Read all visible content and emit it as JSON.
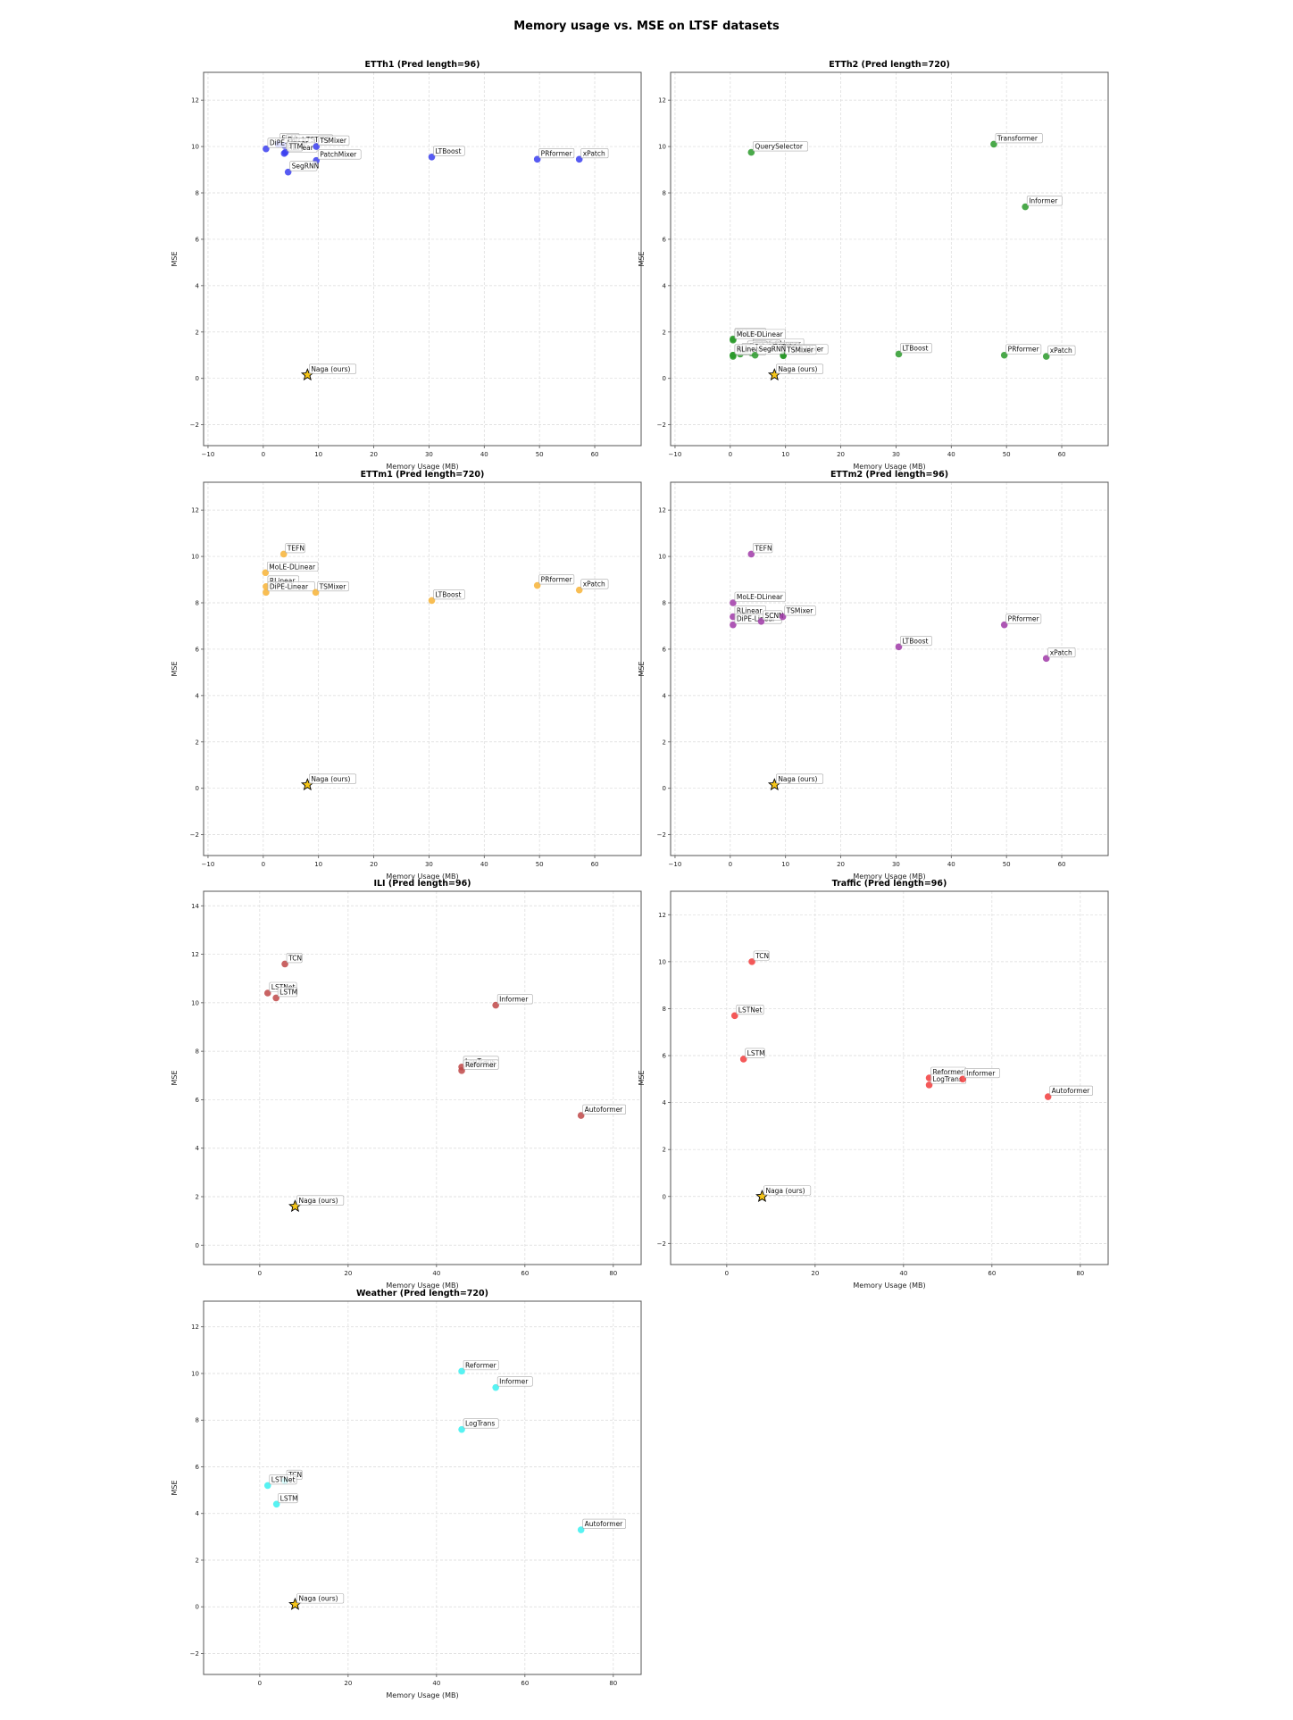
{
  "title": "Memory usage vs. MSE on LTSF datasets",
  "colors": {
    "ETTh1": "#3a3ef0",
    "ETTh2": "#2a9a2a",
    "ETTm1": "#f7b336",
    "ETTm2": "#a03aa8",
    "ILI": "#c04848",
    "Traffic": "#f23c3c",
    "Weather": "#3af0f0",
    "ours": "#f5c518"
  },
  "chart_data": [
    {
      "type": "scatter",
      "title": "ETTh1 (Pred length=96)",
      "xlabel": "Memory Usage (MB)",
      "ylabel": "MSE",
      "xlim": [
        -10.8,
        68.4
      ],
      "ylim": [
        -2.9,
        13.2
      ],
      "xticks": [
        -10,
        0,
        10,
        20,
        30,
        40,
        50,
        60
      ],
      "yticks": [
        -2,
        0,
        2,
        4,
        6,
        8,
        10,
        12
      ],
      "grid": true,
      "color_key": "ETTh1",
      "points": [
        {
          "label": "FiLM",
          "x": 2.7,
          "y": 10.1
        },
        {
          "label": "PatchTST/64",
          "x": 3.8,
          "y": 10.05
        },
        {
          "label": "DiPE-Linear",
          "x": 0.5,
          "y": 9.9
        },
        {
          "label": "RLinear",
          "x": 3.8,
          "y": 9.7
        },
        {
          "label": "TTM",
          "x": 4.0,
          "y": 9.75
        },
        {
          "label": "TSMixer",
          "x": 9.6,
          "y": 10.0
        },
        {
          "label": "PatchMixer",
          "x": 9.6,
          "y": 9.4
        },
        {
          "label": "SegRNN",
          "x": 4.5,
          "y": 8.9
        },
        {
          "label": "LTBoost",
          "x": 30.5,
          "y": 9.55
        },
        {
          "label": "PRformer",
          "x": 49.6,
          "y": 9.45
        },
        {
          "label": "xPatch",
          "x": 57.2,
          "y": 9.45
        },
        {
          "label": "Naga (ours)",
          "x": 8.0,
          "y": 0.15,
          "ours": true
        }
      ]
    },
    {
      "type": "scatter",
      "title": "ETTh2 (Pred length=720)",
      "xlabel": "Memory Usage (MB)",
      "ylabel": "MSE",
      "xlim": [
        -10.8,
        68.4
      ],
      "ylim": [
        -2.9,
        13.2
      ],
      "xticks": [
        -10,
        0,
        10,
        20,
        30,
        40,
        50,
        60
      ],
      "yticks": [
        -2,
        0,
        2,
        4,
        6,
        8,
        10,
        12
      ],
      "grid": true,
      "color_key": "ETTh2",
      "points": [
        {
          "label": "QuerySelector",
          "x": 3.8,
          "y": 9.75
        },
        {
          "label": "Transformer",
          "x": 47.7,
          "y": 10.1
        },
        {
          "label": "Informer",
          "x": 53.4,
          "y": 7.4
        },
        {
          "label": "DLinear",
          "x": 0.5,
          "y": 1.7
        },
        {
          "label": "MoLE-DLinear",
          "x": 0.5,
          "y": 1.65
        },
        {
          "label": "MoLE-RLinear",
          "x": 3.8,
          "y": 1.25
        },
        {
          "label": "SCINet",
          "x": 3.8,
          "y": 1.2
        },
        {
          "label": "FiLM",
          "x": 2.8,
          "y": 1.15
        },
        {
          "label": "TEFN",
          "x": 1.8,
          "y": 1.05
        },
        {
          "label": "PatchTST/64",
          "x": 3.8,
          "y": 1.1
        },
        {
          "label": "DiPE-Linear",
          "x": 0.5,
          "y": 1.0
        },
        {
          "label": "NLinear",
          "x": 0.5,
          "y": 0.95
        },
        {
          "label": "RLinear",
          "x": 0.5,
          "y": 1.0
        },
        {
          "label": "PatchMixer",
          "x": 9.6,
          "y": 1.0
        },
        {
          "label": "TiDE",
          "x": 9.6,
          "y": 1.0
        },
        {
          "label": "TSMixer",
          "x": 9.6,
          "y": 0.98
        },
        {
          "label": "SegRNN",
          "x": 4.5,
          "y": 1.0
        },
        {
          "label": "LTBoost",
          "x": 30.5,
          "y": 1.05
        },
        {
          "label": "PRformer",
          "x": 49.6,
          "y": 1.0
        },
        {
          "label": "xPatch",
          "x": 57.2,
          "y": 0.95
        },
        {
          "label": "Naga (ours)",
          "x": 8.0,
          "y": 0.15,
          "ours": true
        }
      ]
    },
    {
      "type": "scatter",
      "title": "ETTm1 (Pred length=720)",
      "xlabel": "Memory Usage (MB)",
      "ylabel": "MSE",
      "xlim": [
        -10.8,
        68.4
      ],
      "ylim": [
        -2.9,
        13.2
      ],
      "xticks": [
        -10,
        0,
        10,
        20,
        30,
        40,
        50,
        60
      ],
      "yticks": [
        -2,
        0,
        2,
        4,
        6,
        8,
        10,
        12
      ],
      "grid": true,
      "color_key": "ETTm1",
      "points": [
        {
          "label": "TEFN",
          "x": 3.7,
          "y": 10.1
        },
        {
          "label": "MoLE-DLinear",
          "x": 0.4,
          "y": 9.3
        },
        {
          "label": "RLinear",
          "x": 0.5,
          "y": 8.7
        },
        {
          "label": "DiPE-Linear",
          "x": 0.5,
          "y": 8.45
        },
        {
          "label": "TSMixer",
          "x": 9.5,
          "y": 8.45
        },
        {
          "label": "LTBoost",
          "x": 30.5,
          "y": 8.1
        },
        {
          "label": "PRformer",
          "x": 49.6,
          "y": 8.75
        },
        {
          "label": "xPatch",
          "x": 57.2,
          "y": 8.55
        },
        {
          "label": "Naga (ours)",
          "x": 8.0,
          "y": 0.15,
          "ours": true
        }
      ]
    },
    {
      "type": "scatter",
      "title": "ETTm2 (Pred length=96)",
      "xlabel": "Memory Usage (MB)",
      "ylabel": "MSE",
      "xlim": [
        -10.8,
        68.4
      ],
      "ylim": [
        -2.9,
        13.2
      ],
      "xticks": [
        -10,
        0,
        10,
        20,
        30,
        40,
        50,
        60
      ],
      "yticks": [
        -2,
        0,
        2,
        4,
        6,
        8,
        10,
        12
      ],
      "grid": true,
      "color_key": "ETTm2",
      "points": [
        {
          "label": "TEFN",
          "x": 3.8,
          "y": 10.1
        },
        {
          "label": "MoLE-DLinear",
          "x": 0.5,
          "y": 8.0
        },
        {
          "label": "RLinear",
          "x": 0.5,
          "y": 7.4
        },
        {
          "label": "DiPE-Linear",
          "x": 0.5,
          "y": 7.05
        },
        {
          "label": "SCNN",
          "x": 5.6,
          "y": 7.2
        },
        {
          "label": "TSMixer",
          "x": 9.5,
          "y": 7.4
        },
        {
          "label": "LTBoost",
          "x": 30.5,
          "y": 6.1
        },
        {
          "label": "PRformer",
          "x": 49.6,
          "y": 7.05
        },
        {
          "label": "xPatch",
          "x": 57.2,
          "y": 5.6
        },
        {
          "label": "Naga (ours)",
          "x": 8.0,
          "y": 0.15,
          "ours": true
        }
      ]
    },
    {
      "type": "scatter",
      "title": "ILI (Pred length=96)",
      "xlabel": "Memory Usage (MB)",
      "ylabel": "MSE",
      "xlim": [
        -12.7,
        86.3
      ],
      "ylim": [
        -0.8,
        14.6
      ],
      "xticks": [
        0,
        20,
        40,
        60,
        80
      ],
      "yticks": [
        0,
        2,
        4,
        6,
        8,
        10,
        12,
        14
      ],
      "grid": true,
      "color_key": "ILI",
      "points": [
        {
          "label": "TCN",
          "x": 5.7,
          "y": 11.6
        },
        {
          "label": "LSTNet",
          "x": 1.8,
          "y": 10.4
        },
        {
          "label": "LSTM",
          "x": 3.7,
          "y": 10.2
        },
        {
          "label": "Informer",
          "x": 53.4,
          "y": 9.9
        },
        {
          "label": "LogTrans",
          "x": 45.7,
          "y": 7.35
        },
        {
          "label": "Reformer",
          "x": 45.7,
          "y": 7.2
        },
        {
          "label": "Autoformer",
          "x": 72.7,
          "y": 5.35
        },
        {
          "label": "Naga (ours)",
          "x": 8.0,
          "y": 1.6,
          "ours": true
        }
      ]
    },
    {
      "type": "scatter",
      "title": "Traffic (Pred length=96)",
      "xlabel": "Memory Usage (MB)",
      "ylabel": "MSE",
      "xlim": [
        -12.7,
        86.3
      ],
      "ylim": [
        -2.9,
        13.0
      ],
      "xticks": [
        0,
        20,
        40,
        60,
        80
      ],
      "yticks": [
        -2,
        0,
        2,
        4,
        6,
        8,
        10,
        12
      ],
      "grid": true,
      "color_key": "Traffic",
      "points": [
        {
          "label": "TCN",
          "x": 5.7,
          "y": 10.0
        },
        {
          "label": "LSTNet",
          "x": 1.8,
          "y": 7.7
        },
        {
          "label": "LSTM",
          "x": 3.8,
          "y": 5.85
        },
        {
          "label": "Reformer",
          "x": 45.8,
          "y": 5.05
        },
        {
          "label": "LogTrans",
          "x": 45.8,
          "y": 4.75
        },
        {
          "label": "Informer",
          "x": 53.4,
          "y": 5.0
        },
        {
          "label": "Autoformer",
          "x": 72.7,
          "y": 4.25
        },
        {
          "label": "Naga (ours)",
          "x": 8.0,
          "y": 0.0,
          "ours": true
        }
      ]
    },
    {
      "type": "scatter",
      "title": "Weather (Pred length=720)",
      "xlabel": "Memory Usage (MB)",
      "ylabel": "MSE",
      "xlim": [
        -12.7,
        86.3
      ],
      "ylim": [
        -2.9,
        13.1
      ],
      "xticks": [
        0,
        20,
        40,
        60,
        80
      ],
      "yticks": [
        -2,
        0,
        2,
        4,
        6,
        8,
        10,
        12
      ],
      "grid": true,
      "color_key": "Weather",
      "points": [
        {
          "label": "Reformer",
          "x": 45.7,
          "y": 10.1
        },
        {
          "label": "Informer",
          "x": 53.4,
          "y": 9.4
        },
        {
          "label": "LogTrans",
          "x": 45.7,
          "y": 7.6
        },
        {
          "label": "TCN",
          "x": 5.7,
          "y": 5.4
        },
        {
          "label": "LSTNet",
          "x": 1.8,
          "y": 5.2
        },
        {
          "label": "LSTM",
          "x": 3.8,
          "y": 4.4
        },
        {
          "label": "Autoformer",
          "x": 72.7,
          "y": 3.3
        },
        {
          "label": "Naga (ours)",
          "x": 8.0,
          "y": 0.1,
          "ours": true
        }
      ]
    }
  ]
}
